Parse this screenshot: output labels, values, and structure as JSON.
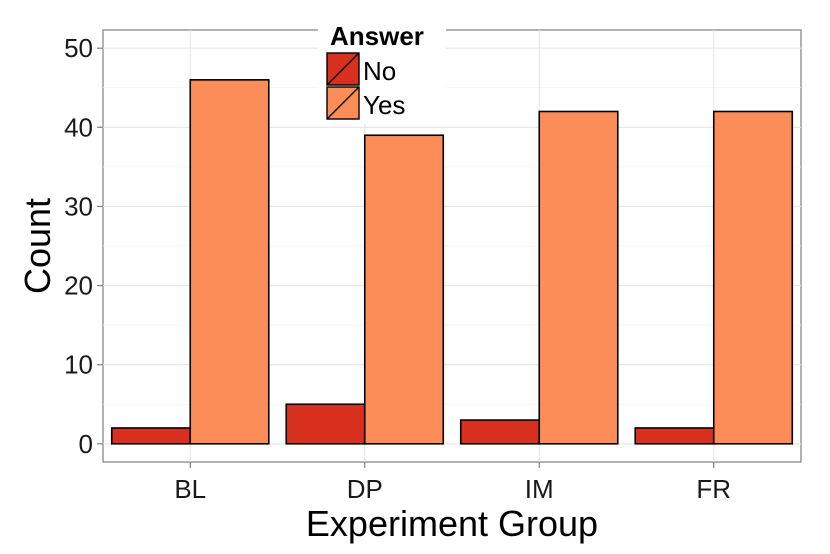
{
  "chart_data": {
    "type": "bar",
    "categories": [
      "BL",
      "DP",
      "IM",
      "FR"
    ],
    "series": [
      {
        "name": "No",
        "values": [
          2,
          5,
          3,
          2
        ],
        "color": "#d7301f"
      },
      {
        "name": "Yes",
        "values": [
          46,
          39,
          42,
          42
        ],
        "color": "#fc8d59"
      }
    ],
    "xlabel": "Experiment Group",
    "ylabel": "Count",
    "ylim": [
      -2.3,
      52.3
    ],
    "yticks": [
      "0",
      "10",
      "20",
      "30",
      "40",
      "50"
    ],
    "legend": {
      "title": "Answer",
      "placement": "top"
    },
    "grid": true
  }
}
